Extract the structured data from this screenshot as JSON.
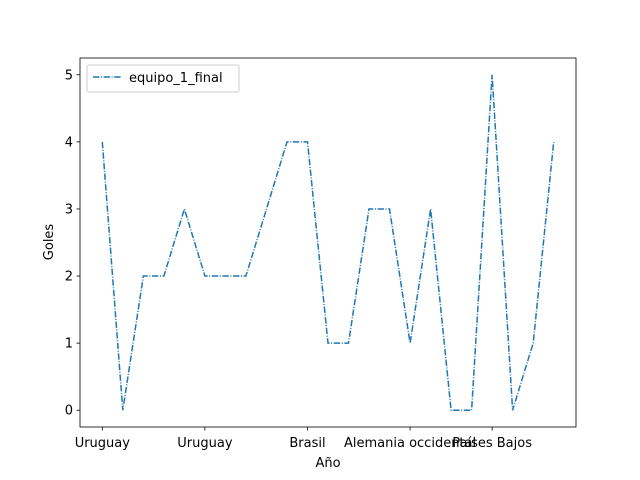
{
  "chart_data": {
    "type": "line",
    "xlabel": "Año",
    "ylabel": "Goles",
    "x_tick_labels": [
      "Uruguay",
      "Uruguay",
      "Brasil",
      "Alemania occidental",
      "Países Bajos"
    ],
    "x_tick_indices": [
      0,
      5,
      10,
      15,
      19
    ],
    "ylim": [
      -0.25,
      5.25
    ],
    "yticks": [
      0,
      1,
      2,
      3,
      4,
      5
    ],
    "grid": false,
    "legend": "top-left",
    "series": [
      {
        "name": "equipo_1_final",
        "color": "#1f77b4",
        "linestyle": "dashdot",
        "values": [
          4,
          0,
          2,
          2,
          3,
          2,
          2,
          2,
          3,
          4,
          4,
          1,
          1,
          3,
          3,
          1,
          3,
          0,
          0,
          5,
          0,
          1,
          4
        ]
      }
    ]
  }
}
